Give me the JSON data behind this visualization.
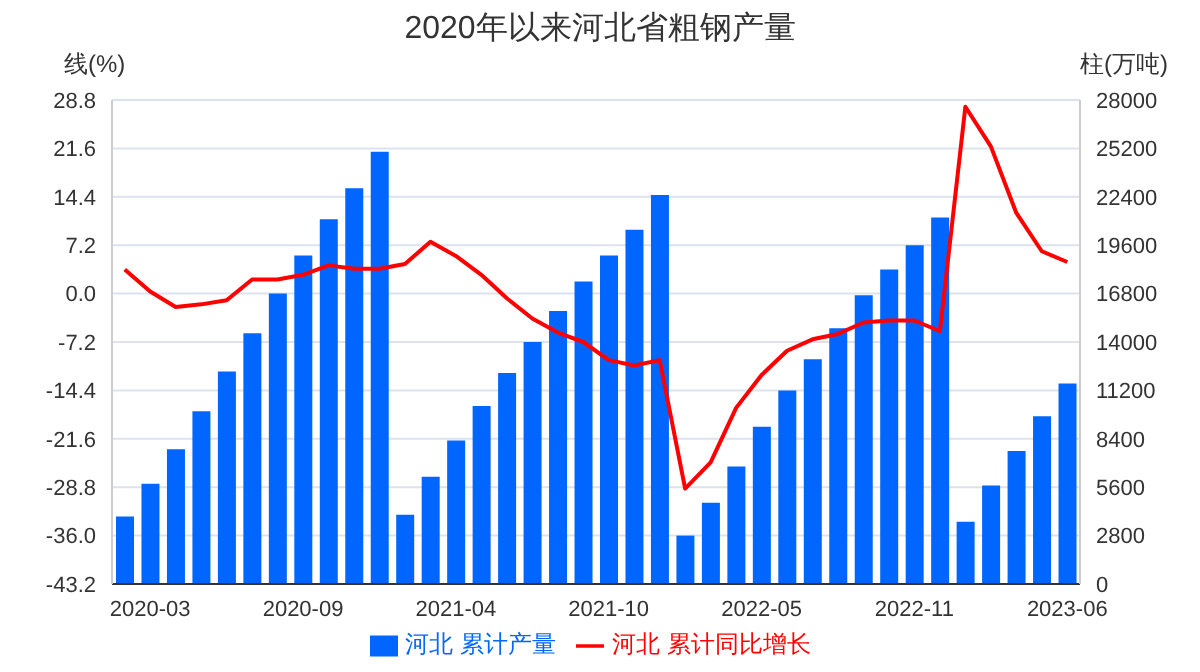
{
  "chart_data": {
    "type": "bar",
    "title": "2020年以来河北省粗钢产量",
    "ylabel": "线(%)",
    "y2label": "柱(万吨)",
    "categories": [
      null,
      "2020-03",
      null,
      null,
      null,
      null,
      null,
      "2020-09",
      null,
      null,
      null,
      null,
      null,
      "2021-04",
      null,
      null,
      null,
      null,
      null,
      "2021-10",
      null,
      null,
      null,
      null,
      null,
      "2022-05",
      null,
      null,
      null,
      null,
      null,
      "2022-11",
      null,
      null,
      null,
      null,
      null,
      "2023-06"
    ],
    "series": [
      {
        "name": "河北 累计产量",
        "axis": "y2",
        "color": "#0066ff",
        "values": [
          3900,
          5800,
          7800,
          10000,
          12300,
          14500,
          16800,
          19000,
          21100,
          22900,
          25000,
          4000,
          6200,
          8300,
          10300,
          12200,
          14000,
          15800,
          17500,
          19000,
          20500,
          22500,
          2800,
          4700,
          6800,
          9100,
          11200,
          13000,
          14800,
          16700,
          18200,
          19600,
          21200,
          3600,
          5700,
          7700,
          9700,
          11600
        ]
      },
      {
        "name": "河北 累计同比增长",
        "type": "line",
        "axis": "y",
        "color": "#ff0000",
        "marker": "none",
        "line_style": "solid",
        "values": [
          3.6,
          0.3,
          -2.0,
          -1.6,
          -1.0,
          2.1,
          2.1,
          2.8,
          4.2,
          3.7,
          3.7,
          4.4,
          7.7,
          5.6,
          2.8,
          -0.7,
          -3.7,
          -5.8,
          -7.2,
          -9.9,
          -10.7,
          -9.9,
          -29.0,
          -25.1,
          -17.0,
          -12.1,
          -8.5,
          -6.8,
          -6.0,
          -4.3,
          -4.0,
          -4.0,
          -5.6,
          27.8,
          21.9,
          12.0,
          6.3,
          4.7
        ]
      }
    ],
    "ylim": [
      -43.2,
      28.8
    ],
    "yticks": [
      -43.2,
      {
        "value": -36,
        "label": "-36.0"
      },
      -28.8,
      -21.6,
      -14.4,
      -7.2,
      {
        "value": 0,
        "label": "0.0"
      },
      7.2,
      14.4,
      21.6,
      28.8
    ],
    "y2lim": [
      0,
      28000
    ],
    "y2ticks": [
      0,
      2800,
      5600,
      8400,
      11200,
      14000,
      16800,
      19600,
      22400,
      25200,
      28000
    ],
    "grid": "y",
    "legend": "bottom"
  }
}
